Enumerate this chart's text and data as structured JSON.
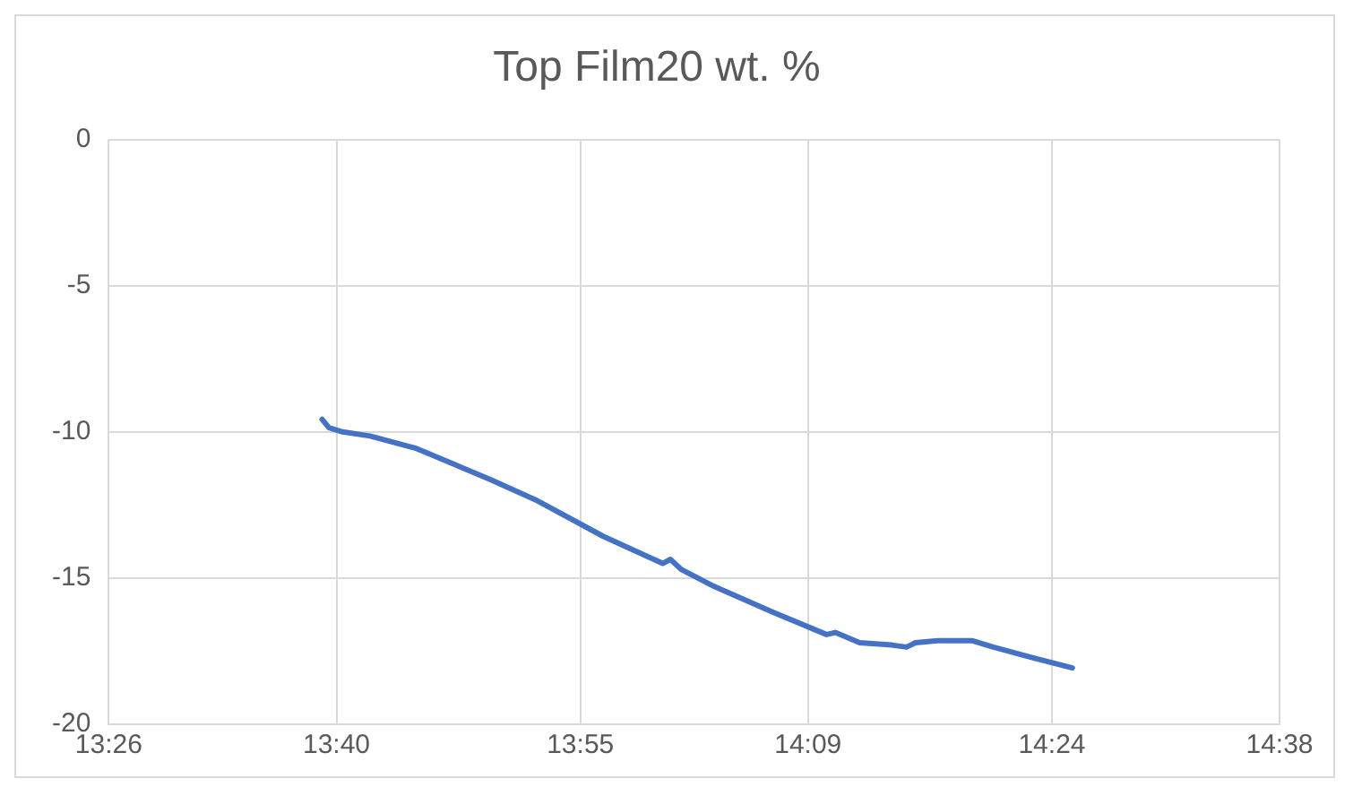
{
  "chart_data": {
    "type": "line",
    "title": "Top Film20 wt. %",
    "x": [
      13.652,
      13.659,
      13.673,
      13.701,
      13.749,
      13.825,
      13.873,
      13.94,
      14.001,
      14.009,
      14.02,
      14.054,
      14.112,
      14.169,
      14.178,
      14.203,
      14.236,
      14.251,
      14.26,
      14.283,
      14.318,
      14.34,
      14.379,
      14.421
    ],
    "series": [
      {
        "color": "#4472c4",
        "values": [
          -9.57,
          -9.86,
          -10.0,
          -10.14,
          -10.57,
          -11.64,
          -12.36,
          -13.57,
          -14.5,
          -14.36,
          -14.7,
          -15.29,
          -16.14,
          -16.93,
          -16.86,
          -17.21,
          -17.29,
          -17.36,
          -17.21,
          -17.14,
          -17.14,
          -17.36,
          -17.71,
          -18.07
        ]
      }
    ],
    "xlim": [
      13.4333,
      14.6333
    ],
    "xticks": [
      {
        "value": 13.4333,
        "label": "13:26"
      },
      {
        "value": 13.6667,
        "label": "13:40"
      },
      {
        "value": 13.9167,
        "label": "13:55"
      },
      {
        "value": 14.15,
        "label": "14:09"
      },
      {
        "value": 14.4,
        "label": "14:24"
      },
      {
        "value": 14.6333,
        "label": "14:38"
      }
    ],
    "ylim": [
      -20,
      0
    ],
    "yticks": [
      -20,
      -15,
      -10,
      -5,
      0
    ],
    "grid": true,
    "legend": false,
    "marker": "none",
    "line_style": "solid"
  }
}
